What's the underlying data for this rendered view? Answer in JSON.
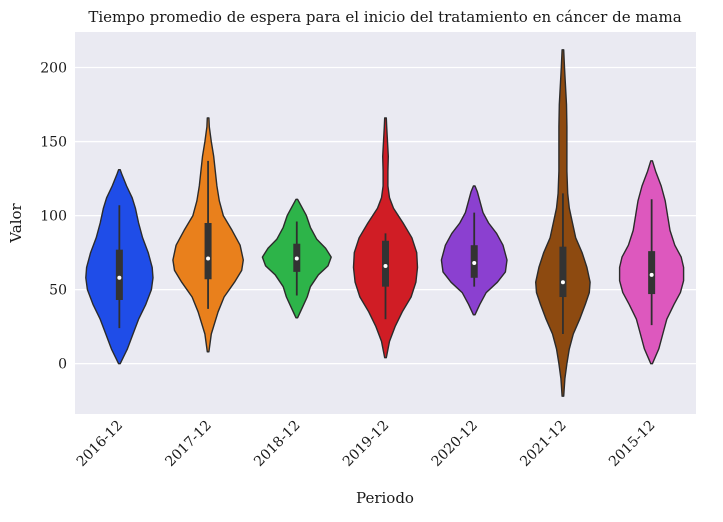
{
  "chart_data": {
    "type": "violin",
    "title": "Tiempo promedio de espera para el inicio del tratamiento en cáncer de mama",
    "xlabel": "Periodo",
    "ylabel": "Valor",
    "ylim": [
      -34,
      224
    ],
    "yticks": [
      0,
      50,
      100,
      150,
      200
    ],
    "ytick_labels": [
      "0",
      "50",
      "100",
      "150",
      "200"
    ],
    "grid": true,
    "categories": [
      "2016-12",
      "2017-12",
      "2018-12",
      "2019-12",
      "2020-12",
      "2021-12",
      "2015-12"
    ],
    "colors": [
      "#1f4de8",
      "#e9801c",
      "#2db449",
      "#d01d25",
      "#8b40d0",
      "#8d4a10",
      "#dd58be"
    ],
    "violins": [
      {
        "category": "2016-12",
        "min": 0,
        "max": 131,
        "median": 58,
        "q1": 43,
        "q3": 77,
        "whisker_low": 24,
        "whisker_high": 107,
        "density": [
          [
            0,
            0.02
          ],
          [
            10,
            0.2
          ],
          [
            20,
            0.34
          ],
          [
            30,
            0.48
          ],
          [
            40,
            0.66
          ],
          [
            50,
            0.8
          ],
          [
            58,
            0.84
          ],
          [
            65,
            0.82
          ],
          [
            75,
            0.72
          ],
          [
            85,
            0.58
          ],
          [
            95,
            0.48
          ],
          [
            105,
            0.4
          ],
          [
            112,
            0.32
          ],
          [
            120,
            0.18
          ],
          [
            128,
            0.06
          ],
          [
            131,
            0.02
          ]
        ]
      },
      {
        "category": "2017-12",
        "min": 8,
        "max": 166,
        "median": 71,
        "q1": 57,
        "q3": 95,
        "whisker_low": 37,
        "whisker_high": 137,
        "density": [
          [
            8,
            0.02
          ],
          [
            20,
            0.08
          ],
          [
            35,
            0.25
          ],
          [
            45,
            0.4
          ],
          [
            55,
            0.66
          ],
          [
            63,
            0.84
          ],
          [
            70,
            0.88
          ],
          [
            80,
            0.8
          ],
          [
            90,
            0.6
          ],
          [
            100,
            0.38
          ],
          [
            110,
            0.28
          ],
          [
            120,
            0.22
          ],
          [
            130,
            0.18
          ],
          [
            140,
            0.14
          ],
          [
            150,
            0.08
          ],
          [
            160,
            0.03
          ],
          [
            166,
            0.02
          ]
        ]
      },
      {
        "category": "2018-12",
        "min": 31,
        "max": 111,
        "median": 71,
        "q1": 62,
        "q3": 81,
        "whisker_low": 46,
        "whisker_high": 96,
        "density": [
          [
            31,
            0.02
          ],
          [
            38,
            0.14
          ],
          [
            45,
            0.26
          ],
          [
            52,
            0.34
          ],
          [
            60,
            0.54
          ],
          [
            66,
            0.78
          ],
          [
            72,
            0.86
          ],
          [
            78,
            0.72
          ],
          [
            84,
            0.5
          ],
          [
            92,
            0.34
          ],
          [
            100,
            0.24
          ],
          [
            106,
            0.12
          ],
          [
            111,
            0.02
          ]
        ]
      },
      {
        "category": "2019-12",
        "min": 4,
        "max": 166,
        "median": 66,
        "q1": 52,
        "q3": 83,
        "whisker_low": 30,
        "whisker_high": 88,
        "density": [
          [
            4,
            0.02
          ],
          [
            15,
            0.1
          ],
          [
            25,
            0.24
          ],
          [
            35,
            0.42
          ],
          [
            45,
            0.64
          ],
          [
            55,
            0.76
          ],
          [
            65,
            0.8
          ],
          [
            75,
            0.78
          ],
          [
            85,
            0.66
          ],
          [
            95,
            0.44
          ],
          [
            105,
            0.2
          ],
          [
            112,
            0.1
          ],
          [
            120,
            0.06
          ],
          [
            130,
            0.06
          ],
          [
            140,
            0.07
          ],
          [
            150,
            0.05
          ],
          [
            160,
            0.03
          ],
          [
            166,
            0.02
          ]
        ]
      },
      {
        "category": "2020-12",
        "min": 33,
        "max": 120,
        "median": 68,
        "q1": 58,
        "q3": 80,
        "whisker_low": 52,
        "whisker_high": 102,
        "density": [
          [
            33,
            0.02
          ],
          [
            40,
            0.14
          ],
          [
            48,
            0.3
          ],
          [
            55,
            0.58
          ],
          [
            62,
            0.78
          ],
          [
            70,
            0.82
          ],
          [
            80,
            0.72
          ],
          [
            88,
            0.56
          ],
          [
            95,
            0.36
          ],
          [
            102,
            0.22
          ],
          [
            110,
            0.14
          ],
          [
            116,
            0.08
          ],
          [
            120,
            0.02
          ]
        ]
      },
      {
        "category": "2021-12",
        "min": -22,
        "max": 212,
        "median": 55,
        "q1": 45,
        "q3": 79,
        "whisker_low": 20,
        "whisker_high": 115,
        "density": [
          [
            -22,
            0.02
          ],
          [
            -10,
            0.05
          ],
          [
            0,
            0.1
          ],
          [
            10,
            0.16
          ],
          [
            20,
            0.26
          ],
          [
            30,
            0.42
          ],
          [
            40,
            0.56
          ],
          [
            48,
            0.66
          ],
          [
            55,
            0.68
          ],
          [
            65,
            0.6
          ],
          [
            75,
            0.48
          ],
          [
            85,
            0.32
          ],
          [
            95,
            0.24
          ],
          [
            105,
            0.16
          ],
          [
            115,
            0.12
          ],
          [
            130,
            0.1
          ],
          [
            145,
            0.1
          ],
          [
            160,
            0.1
          ],
          [
            175,
            0.09
          ],
          [
            190,
            0.06
          ],
          [
            200,
            0.04
          ],
          [
            212,
            0.02
          ]
        ]
      },
      {
        "category": "2015-12",
        "min": 0,
        "max": 137,
        "median": 60,
        "q1": 47,
        "q3": 76,
        "whisker_low": 26,
        "whisker_high": 111,
        "density": [
          [
            0,
            0.02
          ],
          [
            10,
            0.18
          ],
          [
            20,
            0.28
          ],
          [
            30,
            0.38
          ],
          [
            40,
            0.56
          ],
          [
            48,
            0.72
          ],
          [
            56,
            0.8
          ],
          [
            65,
            0.8
          ],
          [
            72,
            0.74
          ],
          [
            80,
            0.58
          ],
          [
            90,
            0.46
          ],
          [
            100,
            0.4
          ],
          [
            110,
            0.34
          ],
          [
            120,
            0.24
          ],
          [
            130,
            0.1
          ],
          [
            137,
            0.02
          ]
        ]
      }
    ]
  }
}
